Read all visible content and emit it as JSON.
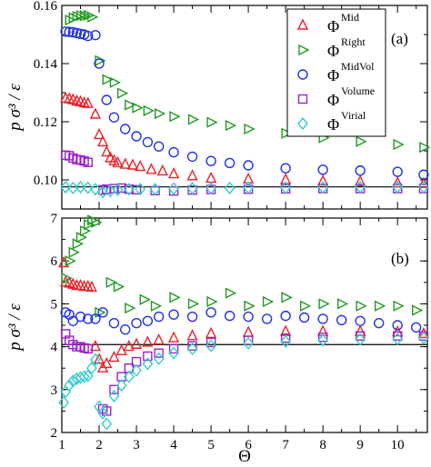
{
  "chart_data": [
    {
      "type": "scatter",
      "panel_label": "(a)",
      "ylabel": "p σ³ / ε",
      "ylim": [
        0.09,
        0.16
      ],
      "xlim": [
        1,
        10.8
      ],
      "yticks": [
        "0.10",
        "0.12",
        "0.14",
        "0.16"
      ],
      "reference_line": 0.0976,
      "legend": {
        "placement": "top-right",
        "prefix": "Φ",
        "entries": [
          "Mid",
          "Right",
          "MidVol",
          "Volume",
          "Virial"
        ]
      },
      "series": [
        {
          "name": "Mid",
          "marker": "triangle",
          "color": "#e8222a",
          "x": [
            1.1,
            1.2,
            1.3,
            1.4,
            1.5,
            1.6,
            1.7,
            1.9,
            2.0,
            2.1,
            2.2,
            2.3,
            2.4,
            2.5,
            2.7,
            2.9,
            3.1,
            3.4,
            3.7,
            4.0,
            4.5,
            5.0,
            6.0,
            7.0,
            8.0,
            9.0,
            10.0,
            10.7
          ],
          "y": [
            0.128,
            0.1278,
            0.1275,
            0.127,
            0.1268,
            0.1264,
            0.1262,
            0.1225,
            0.1155,
            0.113,
            0.1095,
            0.1075,
            0.1065,
            0.1058,
            0.1053,
            0.105,
            0.1045,
            0.1035,
            0.103,
            0.102,
            0.1013,
            0.1005,
            0.1002,
            0.1,
            0.0995,
            0.0993,
            0.0989,
            0.0987
          ]
        },
        {
          "name": "Right",
          "marker": "triangle-right",
          "color": "#229922",
          "x": [
            1.2,
            1.3,
            1.4,
            1.5,
            1.6,
            1.7,
            1.8,
            2.0,
            2.2,
            2.4,
            2.6,
            2.8,
            3.0,
            3.3,
            3.6,
            4.0,
            4.5,
            5.0,
            5.5,
            6.0,
            7.0,
            8.0,
            9.0,
            10.0,
            10.7
          ],
          "y": [
            0.155,
            0.1558,
            0.1562,
            0.1565,
            0.1565,
            0.1566,
            0.156,
            0.141,
            0.1345,
            0.1335,
            0.1298,
            0.1258,
            0.1248,
            0.1238,
            0.1228,
            0.1218,
            0.1208,
            0.1198,
            0.1187,
            0.1175,
            0.116,
            0.1145,
            0.1132,
            0.1122,
            0.1112
          ]
        },
        {
          "name": "MidVol",
          "marker": "circle",
          "color": "#2233dd",
          "x": [
            1.1,
            1.2,
            1.3,
            1.4,
            1.5,
            1.6,
            1.7,
            1.9,
            2.0,
            2.2,
            2.4,
            2.7,
            3.0,
            3.3,
            3.6,
            4.0,
            4.5,
            5.0,
            5.5,
            6.0,
            7.0,
            8.0,
            9.0,
            10.0,
            10.7
          ],
          "y": [
            0.151,
            0.1509,
            0.1508,
            0.1505,
            0.1502,
            0.15,
            0.1495,
            0.1498,
            0.14,
            0.1275,
            0.1215,
            0.1175,
            0.115,
            0.113,
            0.1115,
            0.1095,
            0.108,
            0.1065,
            0.1058,
            0.105,
            0.104,
            0.1035,
            0.1032,
            0.1028,
            0.1018
          ]
        },
        {
          "name": "Volume",
          "marker": "square",
          "color": "#9922cc",
          "x": [
            1.1,
            1.2,
            1.3,
            1.4,
            1.5,
            1.6,
            1.7,
            2.1,
            2.2,
            2.4,
            2.6,
            2.8,
            3.0,
            3.5,
            4.0,
            4.5,
            5.0,
            6.0,
            7.0,
            8.0,
            9.0,
            10.0,
            10.7
          ],
          "y": [
            0.1085,
            0.1083,
            0.1075,
            0.107,
            0.1068,
            0.1065,
            0.106,
            0.0965,
            0.0968,
            0.097,
            0.0972,
            0.0968,
            0.0966,
            0.0963,
            0.0962,
            0.0965,
            0.0967,
            0.0968,
            0.0969,
            0.097,
            0.097,
            0.097,
            0.097
          ]
        },
        {
          "name": "Virial",
          "marker": "diamond",
          "color": "#33cccc",
          "x": [
            1.1,
            1.3,
            1.5,
            1.7,
            1.9,
            2.1,
            2.3,
            2.5,
            2.8,
            3.1,
            3.5,
            4.0,
            4.5,
            5.0,
            5.5,
            6.0,
            7.0,
            8.0,
            9.0,
            10.0,
            10.7
          ],
          "y": [
            0.0975,
            0.0972,
            0.0975,
            0.0973,
            0.0968,
            0.0958,
            0.0962,
            0.0966,
            0.0968,
            0.0968,
            0.0968,
            0.097,
            0.0971,
            0.0972,
            0.0972,
            0.0973,
            0.0973,
            0.0974,
            0.0975,
            0.0975,
            0.0975
          ]
        }
      ]
    },
    {
      "type": "scatter",
      "panel_label": "(b)",
      "ylabel": "p σ³ / ε",
      "xlabel": "Θ",
      "ylim": [
        2,
        7
      ],
      "xlim": [
        1,
        10.8
      ],
      "yticks": [
        "2",
        "3",
        "4",
        "5",
        "6",
        "7"
      ],
      "xticks": [
        "1",
        "2",
        "3",
        "4",
        "5",
        "6",
        "7",
        "8",
        "9",
        "10"
      ],
      "reference_line": 4.05,
      "series": [
        {
          "name": "Mid",
          "marker": "triangle",
          "color": "#e8222a",
          "x": [
            1.05,
            1.1,
            1.2,
            1.3,
            1.4,
            1.5,
            1.6,
            1.7,
            1.8,
            1.9,
            2.0,
            2.1,
            2.2,
            2.4,
            2.6,
            2.8,
            3.0,
            3.3,
            3.6,
            4.0,
            4.5,
            5.0,
            6.0,
            7.0,
            8.0,
            9.0,
            10.0,
            10.7
          ],
          "y": [
            5.95,
            5.5,
            5.48,
            5.45,
            5.42,
            5.42,
            5.4,
            5.4,
            5.38,
            4.0,
            3.7,
            3.5,
            3.6,
            3.75,
            3.9,
            4.0,
            4.05,
            4.1,
            4.15,
            4.2,
            4.25,
            4.3,
            4.33,
            4.35,
            4.35,
            4.35,
            4.34,
            4.3
          ]
        },
        {
          "name": "Right",
          "marker": "triangle-right",
          "color": "#229922",
          "x": [
            1.1,
            1.2,
            1.3,
            1.4,
            1.5,
            1.6,
            1.7,
            1.8,
            1.9,
            2.0,
            2.3,
            2.5,
            2.8,
            3.2,
            3.5,
            4.0,
            4.5,
            5.0,
            5.5,
            6.0,
            6.5,
            7.0,
            7.5,
            8.0,
            8.5,
            9.0,
            9.5,
            10.0,
            10.5
          ],
          "y": [
            5.6,
            6.0,
            6.2,
            6.4,
            6.55,
            6.7,
            6.85,
            6.95,
            6.9,
            4.8,
            5.5,
            5.4,
            4.9,
            5.1,
            4.95,
            5.15,
            5.0,
            5.05,
            5.25,
            4.95,
            5.05,
            5.15,
            4.95,
            5.0,
            5.0,
            4.95,
            4.95,
            4.95,
            4.85
          ]
        },
        {
          "name": "MidVol",
          "marker": "circle",
          "color": "#2233dd",
          "x": [
            1.1,
            1.2,
            1.3,
            1.5,
            1.7,
            1.9,
            2.1,
            2.4,
            2.7,
            3.0,
            3.3,
            3.6,
            4.0,
            4.5,
            5.0,
            5.5,
            6.0,
            6.5,
            7.0,
            7.5,
            8.0,
            8.5,
            9.0,
            9.5,
            10.0,
            10.5
          ],
          "y": [
            4.8,
            4.75,
            4.6,
            4.7,
            4.65,
            4.65,
            4.8,
            4.55,
            4.4,
            4.55,
            4.6,
            4.7,
            4.75,
            4.7,
            4.8,
            4.72,
            4.7,
            4.65,
            4.72,
            4.68,
            4.65,
            4.62,
            4.6,
            4.55,
            4.5,
            4.45
          ]
        },
        {
          "name": "Volume",
          "marker": "square",
          "color": "#9922cc",
          "x": [
            1.1,
            1.2,
            1.3,
            1.4,
            1.5,
            1.6,
            1.7,
            2.1,
            2.2,
            2.4,
            2.6,
            2.8,
            3.0,
            3.3,
            3.6,
            4.0,
            4.5,
            5.0,
            6.0,
            7.0,
            8.0,
            9.0,
            10.0,
            10.7
          ],
          "y": [
            4.3,
            4.15,
            4.05,
            4.0,
            4.0,
            3.97,
            3.95,
            2.55,
            2.5,
            3.0,
            3.3,
            3.5,
            3.65,
            3.78,
            3.85,
            3.95,
            4.02,
            4.1,
            4.15,
            4.2,
            4.22,
            4.25,
            4.25,
            4.25
          ]
        },
        {
          "name": "Virial",
          "marker": "diamond",
          "color": "#33cccc",
          "x": [
            1.05,
            1.1,
            1.2,
            1.3,
            1.4,
            1.5,
            1.6,
            1.7,
            1.8,
            1.9,
            2.0,
            2.1,
            2.2,
            2.4,
            2.6,
            2.8,
            3.0,
            3.3,
            3.6,
            4.0,
            4.5,
            5.0,
            6.0,
            7.0,
            8.0,
            9.0,
            10.0,
            10.7
          ],
          "y": [
            2.7,
            2.95,
            3.1,
            3.2,
            3.25,
            3.28,
            3.3,
            3.32,
            3.5,
            3.7,
            2.6,
            2.45,
            2.2,
            2.85,
            3.1,
            3.3,
            3.45,
            3.6,
            3.72,
            3.85,
            3.95,
            4.02,
            4.08,
            4.12,
            4.15,
            4.17,
            4.18,
            4.2
          ]
        }
      ]
    }
  ]
}
